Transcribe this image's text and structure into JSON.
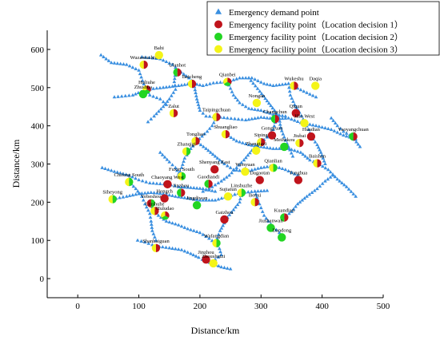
{
  "chart_data": {
    "type": "scatter",
    "xlabel": "Distance/km",
    "ylabel": "Distance/km",
    "xlim": [
      -50,
      500
    ],
    "ylim": [
      -50,
      650
    ],
    "xticks": [
      0,
      100,
      200,
      300,
      400,
      500
    ],
    "yticks": [
      0,
      100,
      200,
      300,
      400,
      500,
      600
    ],
    "legend_position": "top-right",
    "legend": [
      {
        "label": "Emergency demand point",
        "marker": "triangle",
        "color": "#3a8fe0"
      },
      {
        "label": "Emergency facility point（Location decision 1）",
        "marker": "circle",
        "color": "#c0141c"
      },
      {
        "label": "Emergency facility point（Location decision 2）",
        "marker": "circle",
        "color": "#22d522"
      },
      {
        "label": "Emergency facility point（Location decision 3）",
        "marker": "circle",
        "color": "#f4f418"
      }
    ],
    "facilities": [
      {
        "name": "Wuzamuchin",
        "x": 108,
        "y": 560,
        "d": [
          1,
          3
        ]
      },
      {
        "name": "Bahi",
        "x": 133,
        "y": 585,
        "d": [
          3
        ]
      },
      {
        "name": "Ulanhot",
        "x": 163,
        "y": 540,
        "d": [
          1,
          2
        ]
      },
      {
        "name": "Huliuhe",
        "x": 113,
        "y": 495,
        "d": [
          1,
          2,
          3
        ]
      },
      {
        "name": "Zhushua",
        "x": 107,
        "y": 483,
        "d": [
          2
        ]
      },
      {
        "name": "Baicheng",
        "x": 187,
        "y": 510,
        "d": [
          1,
          3
        ]
      },
      {
        "name": "Qianbei",
        "x": 245,
        "y": 515,
        "d": [
          1,
          2,
          3
        ]
      },
      {
        "name": "Wukeshu",
        "x": 354,
        "y": 505,
        "d": [
          1,
          3
        ]
      },
      {
        "name": "Daqia",
        "x": 389,
        "y": 505,
        "d": [
          3
        ]
      },
      {
        "name": "Nongan",
        "x": 293,
        "y": 460,
        "d": [
          3
        ]
      },
      {
        "name": "Zalut",
        "x": 157,
        "y": 433,
        "d": [
          1,
          3
        ]
      },
      {
        "name": "Taipingchuan",
        "x": 227,
        "y": 423,
        "d": [
          1,
          3
        ]
      },
      {
        "name": "Qiqun",
        "x": 357,
        "y": 433,
        "d": [
          1
        ]
      },
      {
        "name": "Changchun",
        "x": 323,
        "y": 418,
        "d": [
          1,
          2
        ]
      },
      {
        "name": "Jilin West",
        "x": 371,
        "y": 407,
        "d": [
          3
        ]
      },
      {
        "name": "Shuangliao",
        "x": 242,
        "y": 378,
        "d": [
          1,
          3
        ]
      },
      {
        "name": "Gongyuan",
        "x": 318,
        "y": 375,
        "d": [
          1
        ]
      },
      {
        "name": "Huadian",
        "x": 382,
        "y": 372,
        "d": [
          1
        ]
      },
      {
        "name": "Yaoyangchuan",
        "x": 451,
        "y": 372,
        "d": [
          1,
          2
        ]
      },
      {
        "name": "Tongliao",
        "x": 193,
        "y": 360,
        "d": [
          1,
          3
        ]
      },
      {
        "name": "Siping",
        "x": 300,
        "y": 357,
        "d": [
          1,
          3
        ]
      },
      {
        "name": "Jiubai",
        "x": 363,
        "y": 355,
        "d": [
          1,
          3
        ]
      },
      {
        "name": "Zhangtazi",
        "x": 292,
        "y": 335,
        "d": [
          3
        ]
      },
      {
        "name": "Meihekou",
        "x": 338,
        "y": 345,
        "d": [
          2
        ]
      },
      {
        "name": "Zhanqigi",
        "x": 178,
        "y": 333,
        "d": [
          2,
          3
        ]
      },
      {
        "name": "Shenyang East",
        "x": 224,
        "y": 286,
        "d": [
          1
        ]
      },
      {
        "name": "Baishan",
        "x": 392,
        "y": 302,
        "d": [
          1,
          3
        ]
      },
      {
        "name": "Wenyuan",
        "x": 274,
        "y": 280,
        "d": [
          3
        ]
      },
      {
        "name": "Qianlian",
        "x": 320,
        "y": 290,
        "d": [
          2,
          3
        ]
      },
      {
        "name": "Fuxin South",
        "x": 170,
        "y": 268,
        "d": [
          2,
          3
        ]
      },
      {
        "name": "Dagaotan",
        "x": 298,
        "y": 258,
        "d": [
          1
        ]
      },
      {
        "name": "Tonghua",
        "x": 361,
        "y": 258,
        "d": [
          1
        ]
      },
      {
        "name": "Chifeng South",
        "x": 84,
        "y": 253,
        "d": [
          2,
          3
        ]
      },
      {
        "name": "Chaoyang West",
        "x": 147,
        "y": 247,
        "d": [
          1
        ]
      },
      {
        "name": "Gaodiandi",
        "x": 214,
        "y": 248,
        "d": [
          1,
          2
        ]
      },
      {
        "name": "Linshuzhe",
        "x": 268,
        "y": 225,
        "d": [
          2,
          3
        ]
      },
      {
        "name": "Siheyong",
        "x": 57,
        "y": 208,
        "d": [
          2,
          3
        ]
      },
      {
        "name": "Jinzhou",
        "x": 169,
        "y": 225,
        "d": [
          1,
          2
        ]
      },
      {
        "name": "Sujiatun",
        "x": 246,
        "y": 215,
        "d": [
          3
        ]
      },
      {
        "name": "Yebeshou",
        "x": 120,
        "y": 197,
        "d": [
          2,
          1
        ]
      },
      {
        "name": "Hongch",
        "x": 142,
        "y": 210,
        "d": [
          1
        ]
      },
      {
        "name": "Jingdiwan",
        "x": 195,
        "y": 192,
        "d": [
          2
        ]
      },
      {
        "name": "Benxi",
        "x": 290,
        "y": 200,
        "d": [
          1,
          3
        ]
      },
      {
        "name": "Liushuhe",
        "x": 126,
        "y": 177,
        "d": [
          1,
          3
        ]
      },
      {
        "name": "Huludao",
        "x": 143,
        "y": 165,
        "d": [
          1,
          2,
          3
        ]
      },
      {
        "name": "Gaizhou",
        "x": 240,
        "y": 155,
        "d": [
          1
        ]
      },
      {
        "name": "Kuandian",
        "x": 338,
        "y": 160,
        "d": [
          1,
          2
        ]
      },
      {
        "name": "Jiushanwan",
        "x": 316,
        "y": 133,
        "d": [
          2
        ]
      },
      {
        "name": "Dandong",
        "x": 334,
        "y": 108,
        "d": [
          2
        ]
      },
      {
        "name": "Wafangdian",
        "x": 227,
        "y": 93,
        "d": [
          2,
          3
        ]
      },
      {
        "name": "Shanhaiguan",
        "x": 128,
        "y": 80,
        "d": [
          1,
          3
        ]
      },
      {
        "name": "Jinzhou",
        "x": 210,
        "y": 50,
        "d": [
          1
        ]
      },
      {
        "name": "Zhoushuizi",
        "x": 222,
        "y": 40,
        "d": [
          3
        ]
      }
    ],
    "routes": [
      [
        [
          38,
          585
        ],
        [
          55,
          565
        ],
        [
          80,
          560
        ],
        [
          100,
          545
        ],
        [
          110,
          500
        ],
        [
          118,
          480
        ],
        [
          135,
          470
        ],
        [
          145,
          455
        ]
      ],
      [
        [
          105,
          580
        ],
        [
          135,
          575
        ],
        [
          155,
          560
        ],
        [
          165,
          545
        ],
        [
          182,
          525
        ],
        [
          190,
          510
        ],
        [
          205,
          505
        ],
        [
          222,
          512
        ],
        [
          245,
          515
        ],
        [
          265,
          525
        ],
        [
          285,
          525
        ],
        [
          305,
          510
        ],
        [
          320,
          505
        ],
        [
          345,
          510
        ],
        [
          370,
          490
        ],
        [
          390,
          475
        ]
      ],
      [
        [
          60,
          475
        ],
        [
          90,
          480
        ],
        [
          113,
          495
        ],
        [
          140,
          500
        ],
        [
          165,
          505
        ],
        [
          185,
          510
        ]
      ],
      [
        [
          160,
          540
        ],
        [
          158,
          515
        ],
        [
          160,
          495
        ],
        [
          150,
          470
        ],
        [
          140,
          450
        ],
        [
          125,
          425
        ],
        [
          115,
          410
        ]
      ],
      [
        [
          190,
          510
        ],
        [
          195,
          470
        ],
        [
          200,
          440
        ],
        [
          210,
          425
        ],
        [
          228,
          423
        ],
        [
          245,
          420
        ],
        [
          275,
          415
        ],
        [
          300,
          422
        ],
        [
          325,
          418
        ],
        [
          345,
          420
        ],
        [
          365,
          408
        ],
        [
          390,
          400
        ],
        [
          415,
          390
        ],
        [
          435,
          375
        ],
        [
          455,
          365
        ]
      ],
      [
        [
          228,
          423
        ],
        [
          220,
          400
        ],
        [
          212,
          385
        ],
        [
          195,
          360
        ],
        [
          185,
          340
        ],
        [
          175,
          315
        ],
        [
          170,
          290
        ],
        [
          165,
          270
        ]
      ],
      [
        [
          245,
          515
        ],
        [
          255,
          480
        ],
        [
          265,
          460
        ],
        [
          280,
          445
        ],
        [
          300,
          440
        ],
        [
          320,
          430
        ],
        [
          340,
          425
        ]
      ],
      [
        [
          280,
          525
        ],
        [
          298,
          490
        ],
        [
          310,
          465
        ],
        [
          322,
          440
        ],
        [
          330,
          420
        ],
        [
          332,
          395
        ],
        [
          338,
          370
        ],
        [
          345,
          345
        ],
        [
          352,
          320
        ]
      ],
      [
        [
          345,
          510
        ],
        [
          348,
          480
        ],
        [
          355,
          455
        ],
        [
          363,
          435
        ],
        [
          372,
          408
        ],
        [
          378,
          390
        ],
        [
          382,
          372
        ],
        [
          392,
          350
        ],
        [
          398,
          330
        ],
        [
          405,
          300
        ]
      ],
      [
        [
          325,
          418
        ],
        [
          320,
          390
        ],
        [
          310,
          370
        ],
        [
          300,
          357
        ],
        [
          285,
          335
        ],
        [
          272,
          310
        ],
        [
          260,
          290
        ],
        [
          248,
          270
        ],
        [
          235,
          255
        ],
        [
          220,
          240
        ],
        [
          205,
          228
        ]
      ],
      [
        [
          242,
          378
        ],
        [
          260,
          360
        ],
        [
          280,
          350
        ],
        [
          300,
          345
        ],
        [
          320,
          340
        ],
        [
          345,
          340
        ],
        [
          365,
          330
        ],
        [
          380,
          310
        ],
        [
          392,
          302
        ],
        [
          410,
          285
        ],
        [
          425,
          260
        ],
        [
          440,
          240
        ],
        [
          455,
          215
        ]
      ],
      [
        [
          193,
          360
        ],
        [
          210,
          340
        ],
        [
          225,
          320
        ],
        [
          240,
          300
        ],
        [
          255,
          285
        ],
        [
          275,
          280
        ],
        [
          300,
          290
        ],
        [
          320,
          295
        ],
        [
          340,
          285
        ],
        [
          360,
          270
        ]
      ],
      [
        [
          40,
          290
        ],
        [
          60,
          280
        ],
        [
          84,
          270
        ],
        [
          100,
          258
        ],
        [
          118,
          250
        ],
        [
          135,
          248
        ],
        [
          147,
          247
        ],
        [
          165,
          240
        ],
        [
          185,
          238
        ],
        [
          205,
          235
        ],
        [
          225,
          228
        ]
      ],
      [
        [
          57,
          208
        ],
        [
          80,
          215
        ],
        [
          100,
          222
        ],
        [
          120,
          225
        ],
        [
          140,
          222
        ],
        [
          160,
          215
        ],
        [
          180,
          210
        ],
        [
          200,
          205
        ],
        [
          225,
          205
        ],
        [
          246,
          215
        ],
        [
          268,
          225
        ],
        [
          290,
          228
        ],
        [
          310,
          230
        ]
      ],
      [
        [
          120,
          197
        ],
        [
          125,
          177
        ],
        [
          132,
          165
        ],
        [
          145,
          150
        ],
        [
          165,
          140
        ],
        [
          180,
          130
        ],
        [
          200,
          120
        ],
        [
          215,
          105
        ],
        [
          225,
          93
        ],
        [
          232,
          78
        ],
        [
          235,
          62
        ],
        [
          225,
          50
        ]
      ],
      [
        [
          268,
          225
        ],
        [
          265,
          200
        ],
        [
          255,
          180
        ],
        [
          245,
          160
        ],
        [
          240,
          145
        ],
        [
          233,
          125
        ],
        [
          228,
          105
        ]
      ],
      [
        [
          290,
          228
        ],
        [
          295,
          205
        ],
        [
          300,
          185
        ],
        [
          305,
          165
        ],
        [
          312,
          150
        ],
        [
          320,
          135
        ],
        [
          330,
          120
        ],
        [
          334,
          108
        ]
      ],
      [
        [
          338,
          160
        ],
        [
          350,
          175
        ],
        [
          360,
          195
        ],
        [
          375,
          215
        ],
        [
          392,
          235
        ],
        [
          405,
          255
        ],
        [
          418,
          270
        ]
      ],
      [
        [
          98,
          100
        ],
        [
          110,
          95
        ],
        [
          128,
          85
        ],
        [
          150,
          80
        ],
        [
          170,
          75
        ],
        [
          185,
          65
        ],
        [
          198,
          55
        ],
        [
          210,
          45
        ],
        [
          222,
          38
        ],
        [
          235,
          30
        ],
        [
          250,
          25
        ]
      ],
      [
        [
          84,
          253
        ],
        [
          95,
          235
        ],
        [
          105,
          215
        ],
        [
          110,
          195
        ],
        [
          118,
          170
        ],
        [
          120,
          150
        ],
        [
          122,
          125
        ],
        [
          128,
          100
        ]
      ],
      [
        [
          135,
          330
        ],
        [
          150,
          305
        ],
        [
          160,
          290
        ],
        [
          168,
          268
        ]
      ],
      [
        [
          415,
          420
        ],
        [
          425,
          400
        ],
        [
          435,
          385
        ],
        [
          450,
          370
        ],
        [
          462,
          345
        ]
      ]
    ]
  }
}
